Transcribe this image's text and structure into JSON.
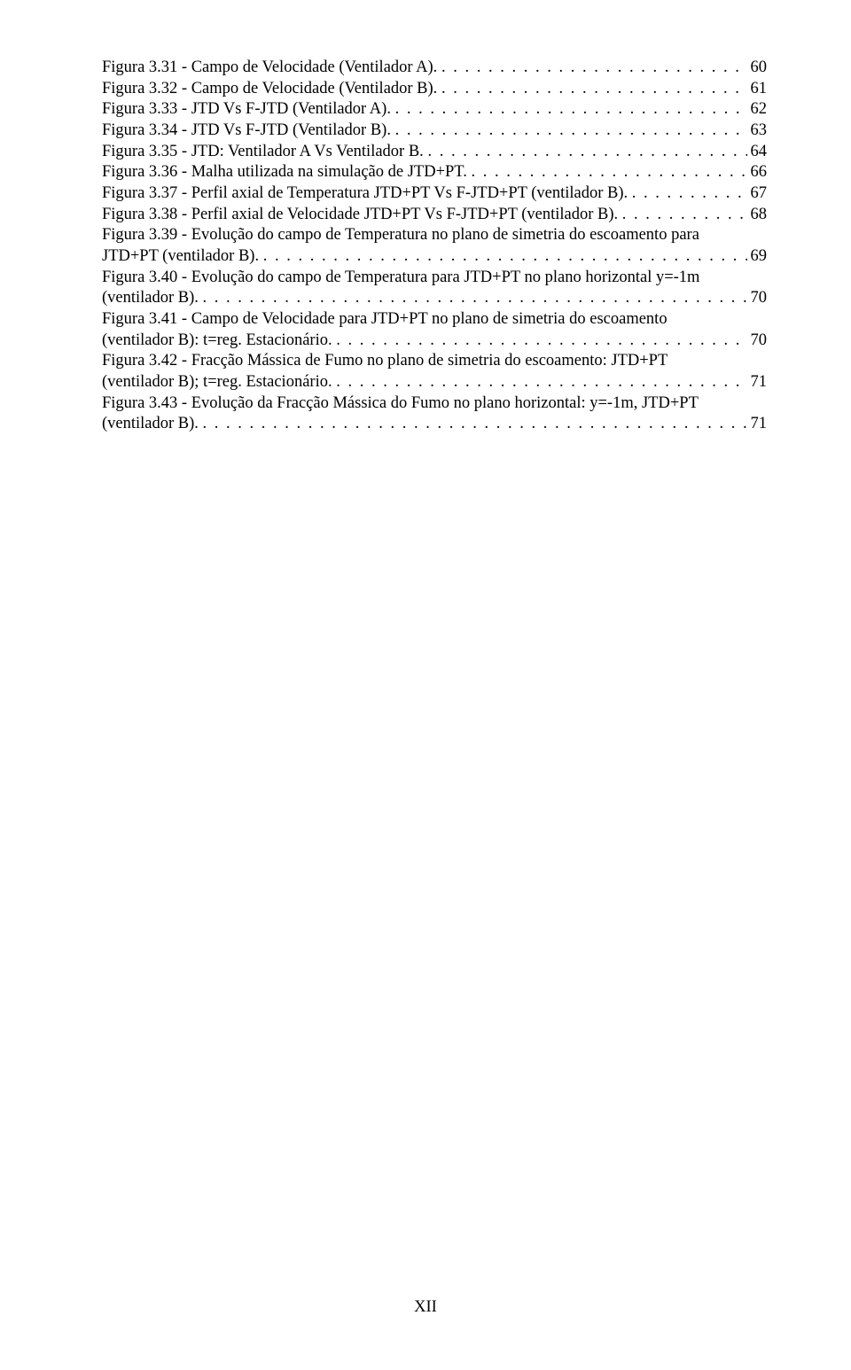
{
  "text_color": "#000000",
  "background_color": "#ffffff",
  "font_family": "Times New Roman",
  "font_size": 18.5,
  "entries": [
    {
      "text": "Figura 3.31 - Campo de Velocidade (Ventilador A).",
      "page": "60"
    },
    {
      "text": "Figura 3.32 - Campo de Velocidade (Ventilador B).",
      "page": "61"
    },
    {
      "text": "Figura 3.33 - JTD Vs F-JTD (Ventilador A).",
      "page": "62"
    },
    {
      "text": "Figura 3.34 - JTD Vs F-JTD (Ventilador B).",
      "page": "63"
    },
    {
      "text": "Figura 3.35 - JTD: Ventilador A Vs Ventilador B.",
      "page": "64"
    },
    {
      "text": "Figura 3.36 - Malha utilizada na simulação de JTD+PT.",
      "page": "66"
    },
    {
      "text": "Figura 3.37 - Perfil axial de Temperatura JTD+PT Vs F-JTD+PT (ventilador B).",
      "page": "67"
    },
    {
      "text": "Figura 3.38 - Perfil axial de Velocidade JTD+PT Vs F-JTD+PT (ventilador B).",
      "page": "68"
    },
    {
      "text_line1": "Figura 3.39 - Evolução do campo de Temperatura no plano de simetria do escoamento para",
      "text_line2": "JTD+PT (ventilador B).",
      "page": "69"
    },
    {
      "text_line1": "Figura 3.40 - Evolução do campo de Temperatura para JTD+PT no plano horizontal y=-1m",
      "text_line2": "(ventilador B).",
      "page": "70"
    },
    {
      "text_line1": "Figura 3.41 - Campo de Velocidade para JTD+PT no plano de simetria do escoamento",
      "text_line2": "(ventilador B): t=reg. Estacionário.",
      "page": "70"
    },
    {
      "text_line1": "Figura 3.42 - Fracção Mássica de Fumo no plano de simetria do escoamento: JTD+PT",
      "text_line2": "(ventilador B); t=reg. Estacionário.",
      "page": "71"
    },
    {
      "text_line1": "Figura 3.43 - Evolução da Fracção Mássica do Fumo no plano horizontal: y=-1m, JTD+PT",
      "text_line2": "(ventilador B).",
      "page": "71"
    }
  ],
  "footer": "XII"
}
